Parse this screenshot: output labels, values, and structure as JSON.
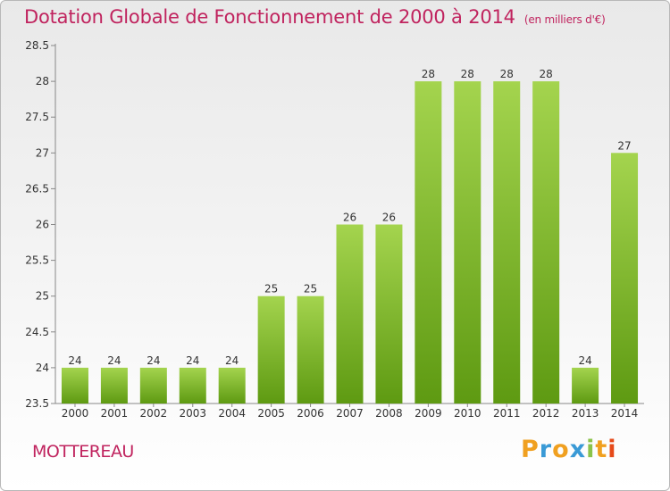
{
  "title": "Dotation Globale de Fonctionnement de 2000 à 2014",
  "unit": "(en milliers d'€)",
  "commune": "MOTTEREAU",
  "logo": {
    "letters": [
      "P",
      "r",
      "o",
      "x",
      "i",
      "t",
      "i"
    ],
    "colors": [
      "#f0a020",
      "#3a9ad6",
      "#f0a020",
      "#3a9ad6",
      "#8bc34a",
      "#f0a020",
      "#e64a19"
    ]
  },
  "colors": {
    "title": "#c0235e",
    "bar_light": "#a4d44e",
    "bar_dark": "#5e9a12"
  },
  "chart_data": {
    "type": "bar",
    "categories": [
      "2000",
      "2001",
      "2002",
      "2003",
      "2004",
      "2005",
      "2006",
      "2007",
      "2008",
      "2009",
      "2010",
      "2011",
      "2012",
      "2013",
      "2014"
    ],
    "values": [
      24,
      24,
      24,
      24,
      24,
      25,
      25,
      26,
      26,
      28,
      28,
      28,
      28,
      24,
      27
    ],
    "labels": [
      "24",
      "24",
      "24",
      "24",
      "24",
      "25",
      "25",
      "26",
      "26",
      "28",
      "28",
      "28",
      "28",
      "24",
      "27"
    ],
    "ylim": [
      23.5,
      28.5
    ],
    "yticks": [
      "23.5",
      "24",
      "24.5",
      "25",
      "25.5",
      "26",
      "26.5",
      "27",
      "27.5",
      "28",
      "28.5"
    ],
    "grid": false,
    "title": "Dotation Globale de Fonctionnement de 2000 à 2014",
    "xlabel": "",
    "ylabel": ""
  }
}
